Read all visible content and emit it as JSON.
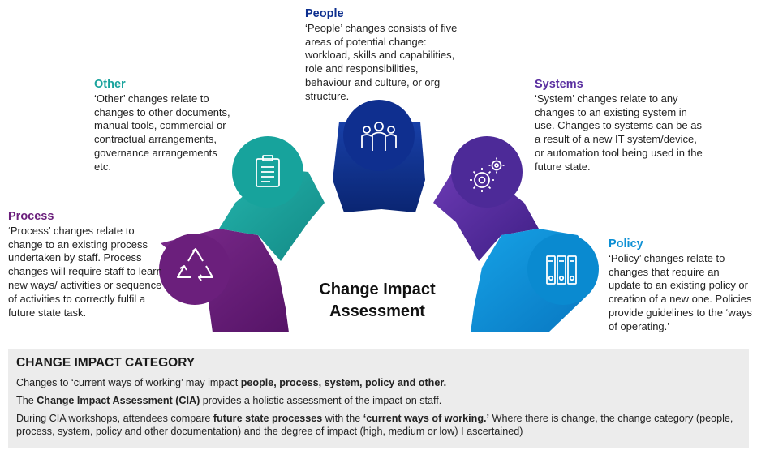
{
  "categories": {
    "people": {
      "title": "People",
      "desc": "‘People’ changes consists of five areas of potential change: workload, skills and capabilities, role and responsibilities, behaviour and culture, or org structure.",
      "color": "#0d2f8f",
      "icon": "people-icon"
    },
    "other": {
      "title": "Other",
      "desc": "‘Other’ changes relate to changes to other documents, manual tools, commercial or contractual arrangements, governance arrangements etc.",
      "color": "#1aa39d",
      "icon": "clipboard-icon"
    },
    "systems": {
      "title": "Systems",
      "desc": "‘System’ changes relate to any changes to an existing system in use. Changes to systems can be as a result of a new IT system/device, or automation tool being used in the future state.",
      "color": "#5a2fa0",
      "icon": "gears-icon"
    },
    "process": {
      "title": "Process",
      "desc": "‘Process’ changes relate to change to an existing process undertaken by staff. Process changes will require staff to learn new ways/ activities or sequence of activities to correctly fulfil a future state task.",
      "color": "#6b1f7c",
      "icon": "recycle-icon"
    },
    "policy": {
      "title": "Policy",
      "desc": "‘Policy’ changes relate to changes that require an update to an existing policy or creation of a new one. Policies provide guidelines to the ‘ways of operating.’",
      "color": "#0b8fd4",
      "icon": "binders-icon"
    }
  },
  "center_title": "Change Impact Assessment",
  "panel": {
    "heading": "CHANGE IMPACT CATEGORY",
    "line1_pre": "Changes to ‘current ways of working’ may impact ",
    "line1_bold": "people, process, system, policy and other.",
    "line2_pre": "The ",
    "line2_bold": "Change Impact Assessment (CIA)",
    "line2_post": " provides a holistic assessment of the impact on staff.",
    "line3_pre": "During CIA workshops, attendees compare ",
    "line3_bold1": "future state processes",
    "line3_mid": " with the ",
    "line3_bold2": "‘current ways of working.’",
    "line3_post": " Where there is change, the change category (people, process, system, policy and other documentation) and the degree of impact (high, medium or low) I ascertained)"
  }
}
